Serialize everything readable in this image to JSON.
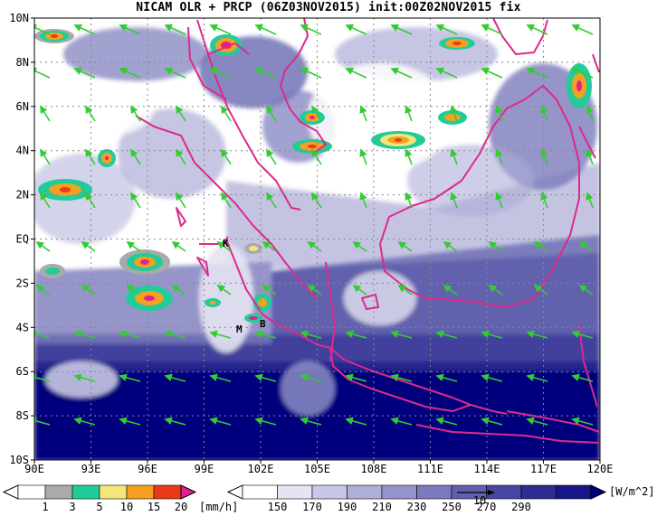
{
  "title": "NICAM OLR + PRCP (06Z03NOV2015) init:00Z02NOV2015 fix",
  "axes": {
    "y_ticks": [
      "10N",
      "8N",
      "6N",
      "4N",
      "2N",
      "EQ",
      "2S",
      "4S",
      "6S",
      "8S",
      "10S"
    ],
    "x_ticks": [
      "90E",
      "93E",
      "96E",
      "99E",
      "102E",
      "105E",
      "108E",
      "111E",
      "114E",
      "117E",
      "120E"
    ]
  },
  "markers": [
    {
      "label": "K"
    },
    {
      "label": "M"
    },
    {
      "label": "B"
    }
  ],
  "precip_legend": {
    "ticks": [
      "1",
      "3",
      "5",
      "10",
      "15",
      "20"
    ],
    "unit": "[mm/h]",
    "colors": [
      "#aaaaaa",
      "#22cc99",
      "#f5e57a",
      "#f5a020",
      "#e83a1a",
      "#e0208e"
    ]
  },
  "olr_legend": {
    "ticks": [
      "150",
      "170",
      "190",
      "210",
      "230",
      "250",
      "270",
      "290"
    ],
    "unit": "[W/m^2]",
    "vector_ref": "10",
    "colors": [
      "#ffffff",
      "#e4e4f2",
      "#c8c8e6",
      "#aeaed8",
      "#9494ca",
      "#7a7abc",
      "#6060ae",
      "#4646a0",
      "#2c2c92",
      "#161688",
      "#00007f"
    ]
  },
  "style": {
    "coast": "#dd2a8c",
    "wind": "#33cc33",
    "grid": "#888888"
  }
}
